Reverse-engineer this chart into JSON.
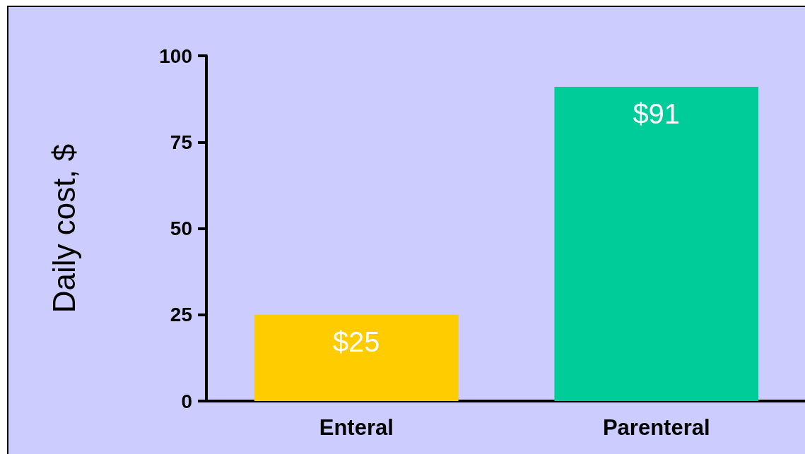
{
  "chart_data": {
    "type": "bar",
    "ylabel": "Daily cost, $",
    "categories": [
      "Enteral",
      "Parenteral"
    ],
    "values": [
      25,
      91
    ],
    "colors": [
      "#ffcc00",
      "#00cc99"
    ],
    "value_labels": [
      "$25",
      "$91"
    ],
    "ylim": [
      0,
      100
    ],
    "yticks": [
      0,
      25,
      50,
      75,
      100
    ],
    "grid": false
  }
}
